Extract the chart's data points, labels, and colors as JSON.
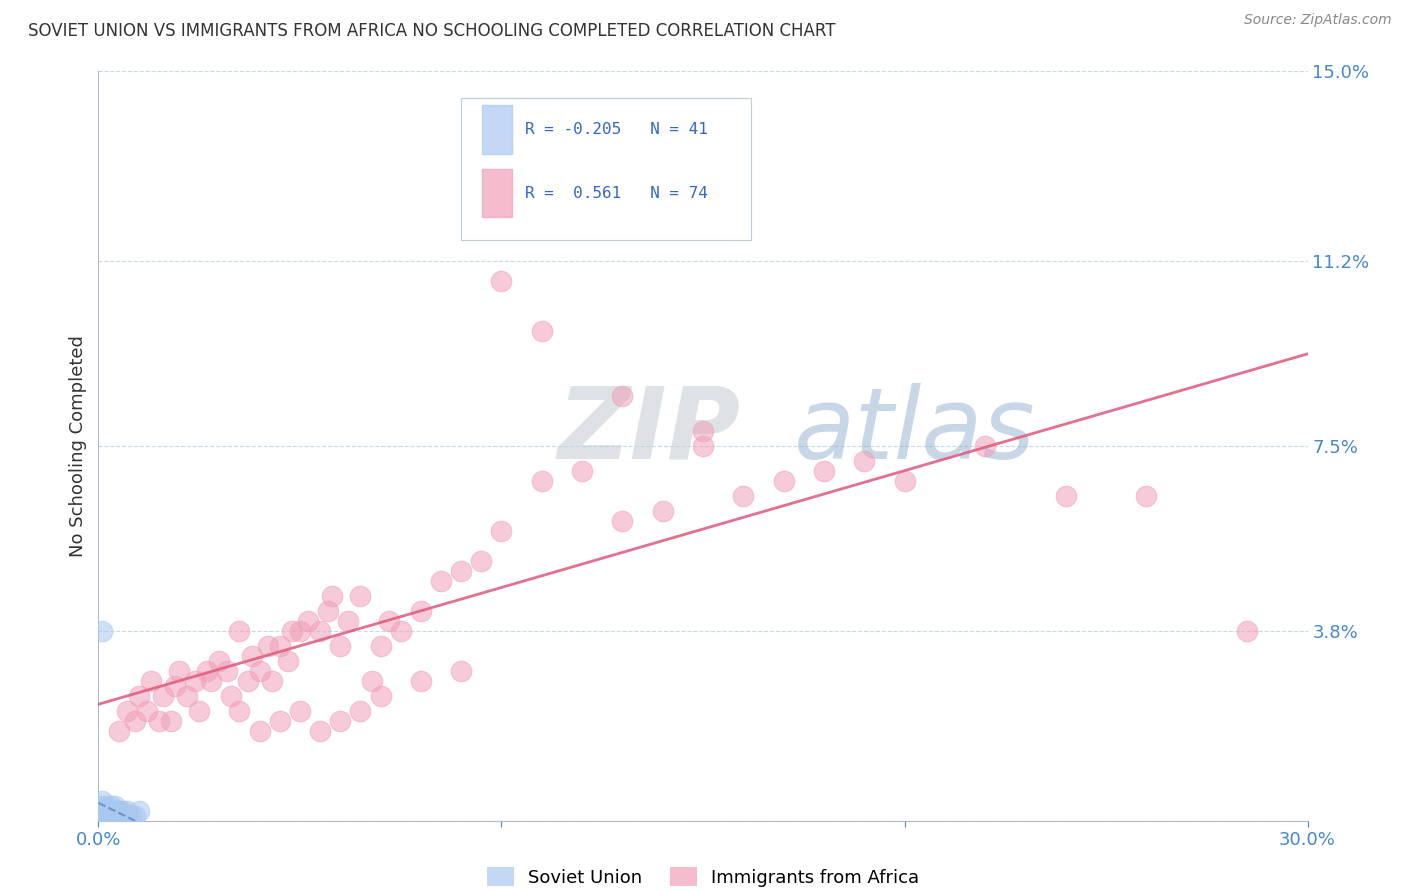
{
  "title": "SOVIET UNION VS IMMIGRANTS FROM AFRICA NO SCHOOLING COMPLETED CORRELATION CHART",
  "source": "Source: ZipAtlas.com",
  "ylabel_label": "No Schooling Completed",
  "right_ytick_vals": [
    0.038,
    0.075,
    0.112,
    0.15
  ],
  "right_ytick_labels": [
    "3.8%",
    "7.5%",
    "11.2%",
    "15.0%"
  ],
  "xlim": [
    0.0,
    0.3
  ],
  "ylim": [
    0.0,
    0.15
  ],
  "color_soviet": "#a8c8f0",
  "color_africa": "#f0a0b8",
  "color_line_soviet": "#6080c0",
  "color_line_africa": "#e06080",
  "watermark_zip": "ZIP",
  "watermark_atlas": "atlas",
  "scatter_soviet_x": [
    0.001,
    0.001,
    0.001,
    0.001,
    0.001,
    0.002,
    0.002,
    0.002,
    0.002,
    0.002,
    0.002,
    0.003,
    0.003,
    0.003,
    0.003,
    0.003,
    0.004,
    0.004,
    0.004,
    0.004,
    0.005,
    0.005,
    0.005,
    0.006,
    0.006,
    0.007,
    0.007,
    0.008,
    0.009,
    0.01,
    0.001,
    0.001,
    0.002,
    0.002,
    0.003,
    0.004,
    0.005,
    0.001,
    0.001,
    0.002,
    0.003
  ],
  "scatter_soviet_y": [
    0.0,
    0.001,
    0.002,
    0.003,
    0.004,
    0.0,
    0.001,
    0.002,
    0.003,
    0.0,
    0.001,
    0.0,
    0.001,
    0.002,
    0.003,
    0.001,
    0.0,
    0.001,
    0.002,
    0.003,
    0.001,
    0.002,
    0.0,
    0.001,
    0.002,
    0.001,
    0.002,
    0.001,
    0.001,
    0.002,
    0.038,
    0.0,
    0.001,
    0.0,
    0.001,
    0.001,
    0.002,
    0.002,
    0.0,
    0.001,
    0.001
  ],
  "scatter_africa_x": [
    0.005,
    0.007,
    0.009,
    0.01,
    0.012,
    0.013,
    0.015,
    0.016,
    0.018,
    0.019,
    0.02,
    0.022,
    0.024,
    0.025,
    0.027,
    0.028,
    0.03,
    0.032,
    0.033,
    0.035,
    0.037,
    0.038,
    0.04,
    0.042,
    0.043,
    0.045,
    0.047,
    0.048,
    0.05,
    0.052,
    0.055,
    0.057,
    0.058,
    0.06,
    0.062,
    0.065,
    0.068,
    0.07,
    0.072,
    0.075,
    0.08,
    0.085,
    0.09,
    0.095,
    0.1,
    0.11,
    0.12,
    0.13,
    0.14,
    0.15,
    0.16,
    0.17,
    0.18,
    0.19,
    0.2,
    0.22,
    0.24,
    0.26,
    0.285,
    0.035,
    0.04,
    0.045,
    0.05,
    0.055,
    0.06,
    0.065,
    0.07,
    0.08,
    0.09,
    0.1,
    0.11,
    0.13,
    0.15
  ],
  "scatter_africa_y": [
    0.018,
    0.022,
    0.02,
    0.025,
    0.022,
    0.028,
    0.02,
    0.025,
    0.02,
    0.027,
    0.03,
    0.025,
    0.028,
    0.022,
    0.03,
    0.028,
    0.032,
    0.03,
    0.025,
    0.038,
    0.028,
    0.033,
    0.03,
    0.035,
    0.028,
    0.035,
    0.032,
    0.038,
    0.038,
    0.04,
    0.038,
    0.042,
    0.045,
    0.035,
    0.04,
    0.045,
    0.028,
    0.035,
    0.04,
    0.038,
    0.042,
    0.048,
    0.05,
    0.052,
    0.058,
    0.068,
    0.07,
    0.06,
    0.062,
    0.075,
    0.065,
    0.068,
    0.07,
    0.072,
    0.068,
    0.075,
    0.065,
    0.065,
    0.038,
    0.022,
    0.018,
    0.02,
    0.022,
    0.018,
    0.02,
    0.022,
    0.025,
    0.028,
    0.03,
    0.108,
    0.098,
    0.085,
    0.078
  ]
}
